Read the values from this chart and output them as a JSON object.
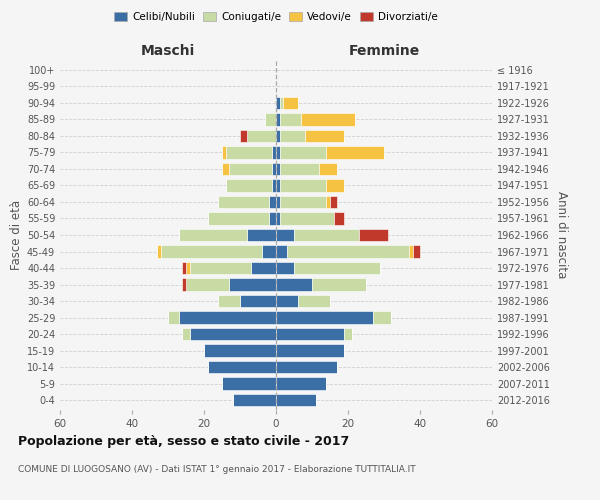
{
  "age_groups": [
    "0-4",
    "5-9",
    "10-14",
    "15-19",
    "20-24",
    "25-29",
    "30-34",
    "35-39",
    "40-44",
    "45-49",
    "50-54",
    "55-59",
    "60-64",
    "65-69",
    "70-74",
    "75-79",
    "80-84",
    "85-89",
    "90-94",
    "95-99",
    "100+"
  ],
  "birth_years": [
    "2012-2016",
    "2007-2011",
    "2002-2006",
    "1997-2001",
    "1992-1996",
    "1987-1991",
    "1982-1986",
    "1977-1981",
    "1972-1976",
    "1967-1971",
    "1962-1966",
    "1957-1961",
    "1952-1956",
    "1947-1951",
    "1942-1946",
    "1937-1941",
    "1932-1936",
    "1927-1931",
    "1922-1926",
    "1917-1921",
    "≤ 1916"
  ],
  "male": {
    "celibi": [
      12,
      15,
      19,
      20,
      24,
      27,
      10,
      13,
      7,
      4,
      8,
      2,
      2,
      1,
      1,
      1,
      0,
      0,
      0,
      0,
      0
    ],
    "coniugati": [
      0,
      0,
      0,
      0,
      2,
      3,
      6,
      12,
      17,
      28,
      19,
      17,
      14,
      13,
      12,
      13,
      8,
      3,
      0,
      0,
      0
    ],
    "vedovi": [
      0,
      0,
      0,
      0,
      0,
      0,
      0,
      0,
      1,
      1,
      0,
      0,
      0,
      0,
      2,
      1,
      0,
      0,
      0,
      0,
      0
    ],
    "divorziati": [
      0,
      0,
      0,
      0,
      0,
      0,
      0,
      1,
      1,
      0,
      0,
      0,
      0,
      0,
      0,
      0,
      2,
      0,
      0,
      0,
      0
    ]
  },
  "female": {
    "nubili": [
      11,
      14,
      17,
      19,
      19,
      27,
      6,
      10,
      5,
      3,
      5,
      1,
      1,
      1,
      1,
      1,
      1,
      1,
      1,
      0,
      0
    ],
    "coniugate": [
      0,
      0,
      0,
      0,
      2,
      5,
      9,
      15,
      24,
      34,
      18,
      15,
      13,
      13,
      11,
      13,
      7,
      6,
      1,
      0,
      0
    ],
    "vedove": [
      0,
      0,
      0,
      0,
      0,
      0,
      0,
      0,
      0,
      1,
      0,
      0,
      1,
      5,
      5,
      16,
      11,
      15,
      4,
      0,
      0
    ],
    "divorziate": [
      0,
      0,
      0,
      0,
      0,
      0,
      0,
      0,
      0,
      2,
      8,
      3,
      2,
      0,
      0,
      0,
      0,
      0,
      0,
      0,
      0
    ]
  },
  "colors": {
    "celibi_nubili": "#3a6ea5",
    "coniugati": "#c8dba5",
    "vedovi": "#f5c242",
    "divorziati": "#c0392b"
  },
  "xlim": 60,
  "title": "Popolazione per età, sesso e stato civile - 2017",
  "subtitle": "COMUNE DI LUOGOSANO (AV) - Dati ISTAT 1° gennaio 2017 - Elaborazione TUTTITALIA.IT",
  "ylabel_left": "Fasce di età",
  "ylabel_right": "Anni di nascita",
  "xlabel_left": "Maschi",
  "xlabel_right": "Femmine",
  "bg_color": "#f5f5f5",
  "grid_color": "#cccccc"
}
